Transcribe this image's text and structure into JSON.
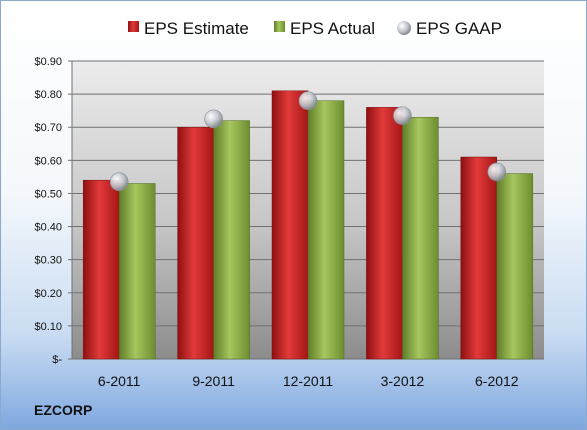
{
  "company": "EZCORP",
  "colors": {
    "estimate": "#c81e1e",
    "actual": "#8fb04a",
    "gaap": "#b9bec6"
  },
  "chart_data": {
    "type": "bar",
    "categories": [
      "6-2011",
      "9-2011",
      "12-2011",
      "3-2012",
      "6-2012"
    ],
    "series": [
      {
        "name": "EPS Estimate",
        "type": "bar",
        "values": [
          0.54,
          0.7,
          0.81,
          0.76,
          0.61
        ]
      },
      {
        "name": "EPS Actual",
        "type": "bar",
        "values": [
          0.53,
          0.72,
          0.78,
          0.73,
          0.56
        ]
      },
      {
        "name": "EPS GAAP",
        "type": "scatter",
        "values": [
          0.535,
          0.725,
          0.78,
          0.735,
          0.565
        ]
      }
    ],
    "ylim": [
      0,
      0.9
    ],
    "yticks": [
      0,
      0.1,
      0.2,
      0.3,
      0.4,
      0.5,
      0.6,
      0.7,
      0.8,
      0.9
    ],
    "ytick_labels": [
      "$-",
      "$0.10",
      "$0.20",
      "$0.30",
      "$0.40",
      "$0.50",
      "$0.60",
      "$0.70",
      "$0.80",
      "$0.90"
    ],
    "legend": "top",
    "grid": true
  }
}
